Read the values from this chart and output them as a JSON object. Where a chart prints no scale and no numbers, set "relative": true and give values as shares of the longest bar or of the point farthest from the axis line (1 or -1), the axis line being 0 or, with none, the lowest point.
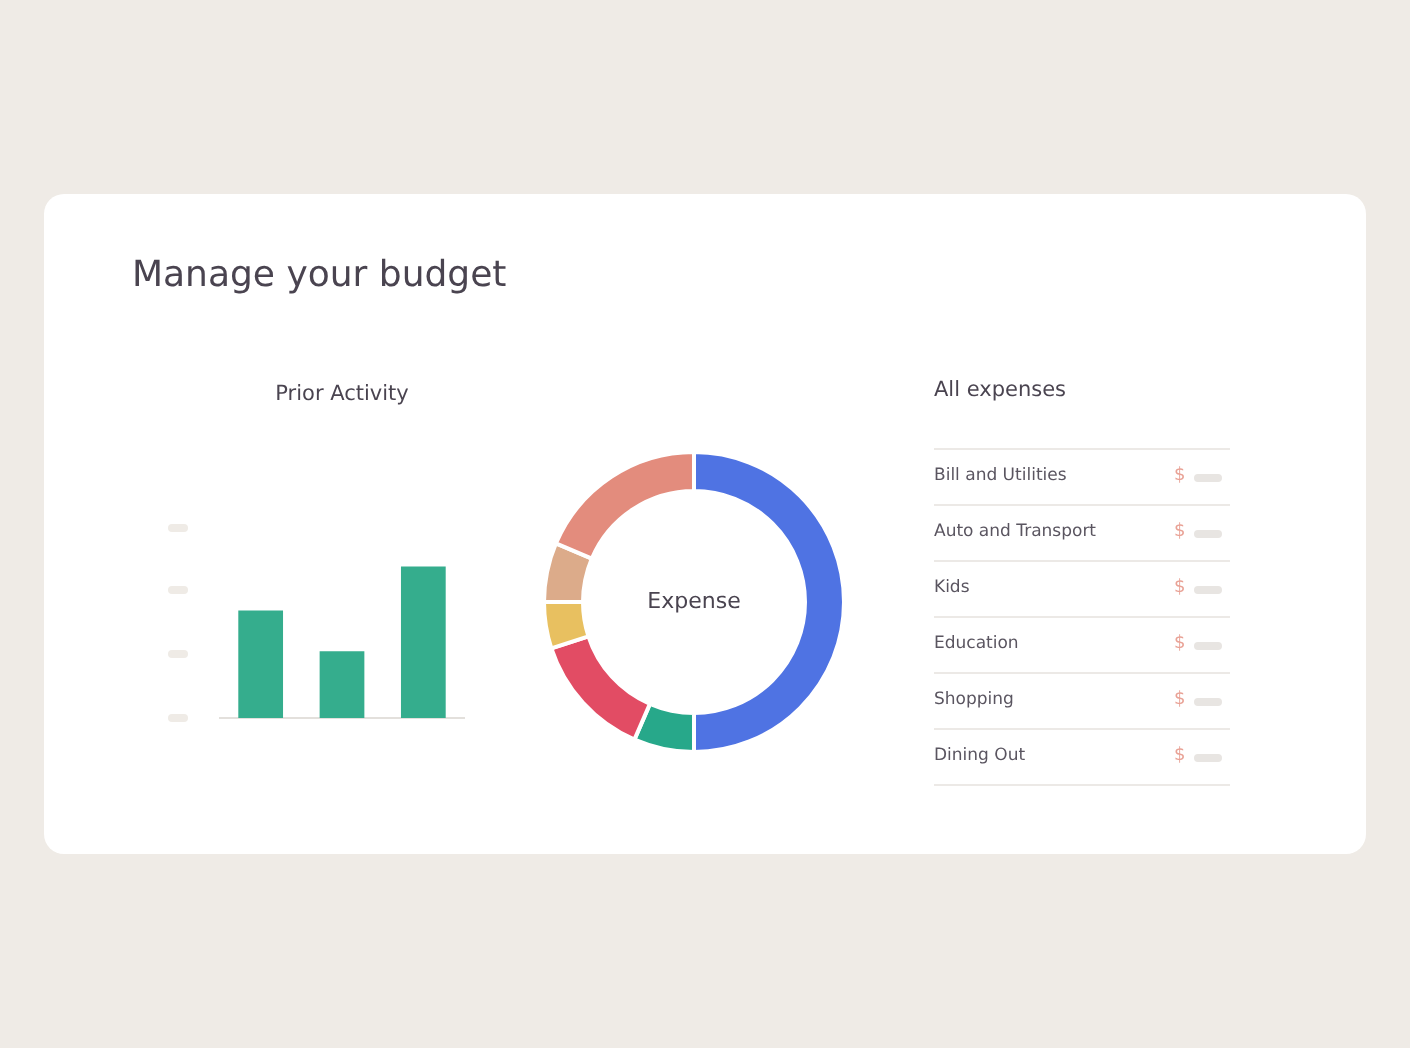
{
  "chart_data": [
    {
      "type": "other",
      "title": "Manage your budget"
    },
    {
      "type": "bar",
      "title": "Prior Activity",
      "categories": [
        null,
        null,
        null
      ],
      "values": [
        0.71,
        0.44,
        1
      ],
      "color": "#35ad8d",
      "relative": true,
      "legend": false
    },
    {
      "type": "donut",
      "title": "Expense",
      "categories": [
        null,
        null,
        null,
        null,
        null,
        null
      ],
      "values": [
        50,
        6.5,
        13.5,
        5,
        6.4,
        18.6
      ],
      "colors": [
        "#4f73e3",
        "#27a88a",
        "#e24c64",
        "#e8c060",
        "#dcab8a",
        "#e38c7d"
      ],
      "legend": false
    },
    {
      "type": "other",
      "title": "All expenses",
      "categories": [
        "Bill and Utilities",
        "Auto and Transport",
        "Kids",
        "Education",
        "Shopping",
        "Dining Out"
      ],
      "annotations": [
        "$",
        "$",
        "$",
        "$",
        "$",
        "$"
      ]
    }
  ]
}
